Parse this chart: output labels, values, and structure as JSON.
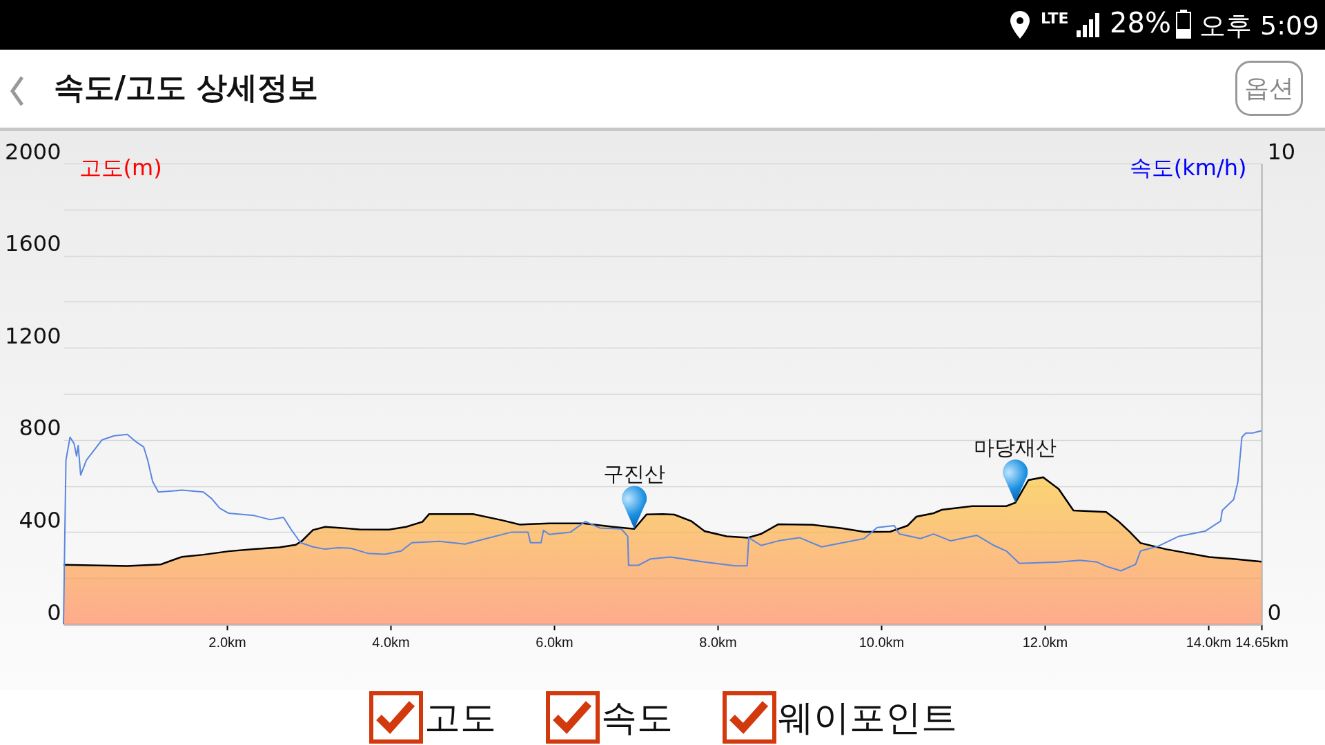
{
  "chart_data": {
    "type": "area",
    "title": "속도/고도 상세정보",
    "ylabel": "고도(m)",
    "y2label": "속도(km/h)",
    "annotations": [
      "LTE",
      "28%",
      "오후 5:09",
      "옵션",
      "고도",
      "속도",
      "웨이포인트",
      {
        "text": "구진산",
        "x": 6.98,
        "y": 414
      },
      {
        "text": "마당재산",
        "x": 11.64,
        "y": 528
      }
    ],
    "series": [
      {
        "color": "#fcc73c",
        "x": [
          0,
          0.78,
          1.19,
          1.45,
          1.71,
          2.02,
          2.33,
          2.64,
          2.84,
          2.92,
          3.05,
          3.2,
          3.62,
          3.98,
          4.19,
          4.39,
          4.47,
          5.01,
          5.37,
          5.58,
          5.94,
          6.36,
          6.72,
          6.98,
          7.13,
          7.33,
          7.47,
          7.68,
          7.84,
          8.11,
          8.37,
          8.53,
          8.74,
          9.16,
          9.53,
          9.79,
          10.11,
          10.32,
          10.43,
          10.64,
          10.74,
          11.11,
          11.53,
          11.64,
          11.8,
          11.98,
          12.17,
          12.35,
          12.75,
          12.9,
          13.04,
          13.17,
          13.48,
          14.01,
          14.33,
          14.65
        ],
        "values": [
          258,
          253,
          260,
          293,
          302,
          317,
          326,
          334,
          345,
          363,
          409,
          423,
          412,
          411,
          423,
          445,
          478,
          478,
          451,
          433,
          438,
          438,
          423,
          414,
          477,
          478,
          476,
          447,
          404,
          382,
          376,
          392,
          434,
          432,
          416,
          401,
          402,
          428,
          467,
          482,
          497,
          513,
          513,
          528,
          626,
          638,
          587,
          494,
          487,
          447,
          401,
          353,
          326,
          292,
          283,
          272
        ]
      },
      {
        "type": "line",
        "axis": "y2",
        "color": "#5b86e0",
        "x": [
          0,
          0.03,
          0.08,
          0.13,
          0.16,
          0.18,
          0.21,
          0.28,
          0.47,
          0.62,
          0.78,
          0.88,
          0.98,
          1.03,
          1.09,
          1.16,
          1.45,
          1.71,
          1.81,
          1.91,
          2.02,
          2.33,
          2.53,
          2.69,
          2.79,
          2.9,
          3.05,
          3.2,
          3.36,
          3.51,
          3.72,
          3.93,
          4.13,
          4.26,
          4.6,
          4.91,
          5.17,
          5.48,
          5.68,
          5.71,
          5.84,
          5.87,
          5.94,
          6.2,
          6.38,
          6.56,
          6.82,
          6.9,
          6.91,
          7.03,
          7.18,
          7.42,
          7.84,
          8.21,
          8.36,
          8.38,
          8.53,
          8.74,
          9.0,
          9.27,
          9.53,
          9.79,
          9.95,
          10.16,
          10.22,
          10.48,
          10.64,
          10.85,
          11.17,
          11.38,
          11.53,
          11.69,
          12.17,
          12.43,
          12.64,
          12.75,
          12.93,
          13.11,
          13.17,
          13.38,
          13.64,
          13.96,
          14.15,
          14.17,
          14.31,
          14.36,
          14.41,
          14.46,
          14.54,
          14.65
        ],
        "values": [
          0,
          3.56,
          4.06,
          3.92,
          3.65,
          3.88,
          3.24,
          3.56,
          4.0,
          4.09,
          4.12,
          3.97,
          3.85,
          3.56,
          3.1,
          2.87,
          2.91,
          2.87,
          2.73,
          2.52,
          2.41,
          2.36,
          2.27,
          2.32,
          2.04,
          1.77,
          1.68,
          1.63,
          1.66,
          1.65,
          1.54,
          1.52,
          1.59,
          1.77,
          1.8,
          1.74,
          1.86,
          2.0,
          2.0,
          1.77,
          1.77,
          2.04,
          1.95,
          2.0,
          2.23,
          2.09,
          2.07,
          1.91,
          1.28,
          1.28,
          1.42,
          1.46,
          1.35,
          1.27,
          1.27,
          1.88,
          1.71,
          1.81,
          1.88,
          1.68,
          1.77,
          1.86,
          2.1,
          2.14,
          1.96,
          1.86,
          1.96,
          1.81,
          1.93,
          1.71,
          1.59,
          1.32,
          1.35,
          1.39,
          1.35,
          1.26,
          1.16,
          1.3,
          1.59,
          1.69,
          1.91,
          2.02,
          2.24,
          2.47,
          2.71,
          3.08,
          4.06,
          4.15,
          4.15,
          4.2
        ]
      }
    ],
    "xlim": [
      0,
      14.65
    ],
    "xticks": [
      {
        "value": 2,
        "label": "2.0km"
      },
      {
        "value": 4,
        "label": "4.0km"
      },
      {
        "value": 6,
        "label": "6.0km"
      },
      {
        "value": 8,
        "label": "8.0km"
      },
      {
        "value": 10,
        "label": "10.0km"
      },
      {
        "value": 12,
        "label": "12.0km"
      },
      {
        "value": 14,
        "label": "14.0km"
      },
      {
        "value": 14.65,
        "label": "14.65km"
      }
    ],
    "ylim": [
      0,
      2000
    ],
    "yticks": [
      0,
      {
        "value": 200,
        "label": null
      },
      400,
      {
        "value": 600,
        "label": null
      },
      800,
      {
        "value": 1000,
        "label": null
      },
      1200,
      {
        "value": 1400,
        "label": null
      },
      1600,
      {
        "value": 1800,
        "label": null
      },
      2000
    ],
    "y2lim": [
      0,
      10
    ],
    "y2ticks": [
      0,
      10
    ],
    "grid": "y"
  }
}
